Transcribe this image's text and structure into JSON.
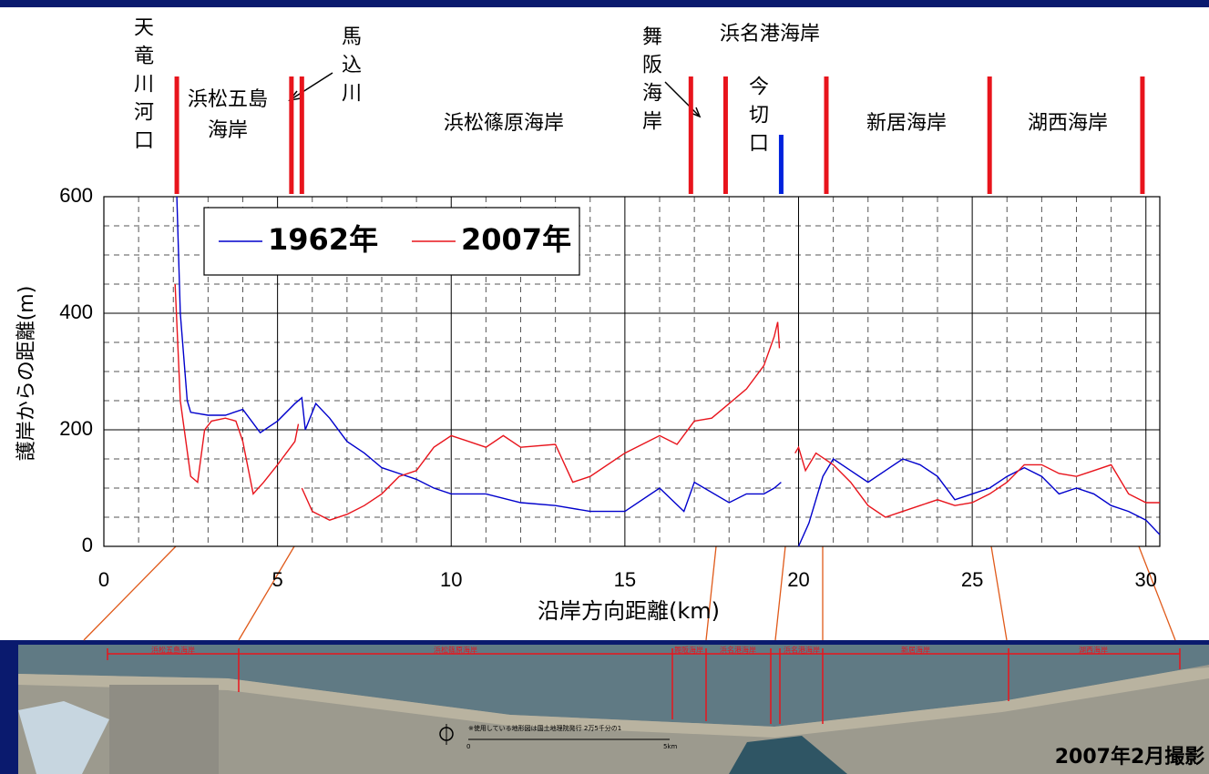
{
  "chart_data": {
    "type": "line",
    "ylabel": "護岸からの距離(m)",
    "xlabel": "沿岸方向距離(km)",
    "xlim": [
      0,
      30.4
    ],
    "ylim": [
      0,
      600
    ],
    "xticks": [
      0,
      5,
      10,
      15,
      20,
      25,
      30
    ],
    "yticks": [
      0,
      200,
      400,
      600
    ],
    "xminor": [
      1,
      2,
      3,
      4,
      6,
      7,
      8,
      9,
      11,
      12,
      13,
      14,
      16,
      17,
      18,
      19,
      21,
      22,
      23,
      24,
      26,
      27,
      28,
      29
    ],
    "yminor": [
      50,
      100,
      150,
      250,
      300,
      350,
      450,
      500,
      550
    ],
    "grid": true,
    "series": [
      {
        "name": "1962年",
        "color": "#0000cc",
        "x": [
          2.1,
          2.2,
          2.4,
          2.5,
          3,
          3.5,
          4,
          4.5,
          5,
          5.5,
          5.7,
          5.8,
          6.1,
          6.5,
          7,
          7.5,
          8,
          8.5,
          9,
          9.5,
          10,
          11,
          12,
          13,
          14,
          15,
          16,
          16.7,
          17,
          18,
          18.5,
          19,
          19.3,
          19.5,
          19.7,
          20,
          20.3,
          20.7,
          21,
          21.5,
          22,
          22.5,
          23,
          23.5,
          24,
          24.5,
          25,
          25.5,
          26,
          26.5,
          27,
          27.5,
          28,
          28.5,
          29,
          29.5,
          30,
          30.4
        ],
        "values": [
          600,
          400,
          250,
          230,
          225,
          225,
          235,
          195,
          215,
          245,
          255,
          200,
          245,
          220,
          180,
          160,
          135,
          125,
          115,
          100,
          90,
          90,
          75,
          70,
          60,
          60,
          100,
          60,
          110,
          75,
          90,
          90,
          100,
          110,
          null,
          0,
          40,
          120,
          150,
          130,
          110,
          130,
          150,
          140,
          120,
          80,
          90,
          100,
          120,
          135,
          120,
          90,
          100,
          90,
          70,
          60,
          45,
          20
        ]
      },
      {
        "name": "2007年",
        "color": "#e8141c",
        "x": [
          2.05,
          2.2,
          2.5,
          2.7,
          2.9,
          3.1,
          3.5,
          3.8,
          4,
          4.3,
          4.6,
          5,
          5.5,
          5.6,
          5.65,
          5.7,
          6,
          6.5,
          7,
          7.5,
          8,
          8.5,
          9,
          9.5,
          10,
          11,
          11.5,
          12,
          13,
          13.5,
          14,
          15,
          16,
          16.5,
          17,
          17.5,
          18,
          18.5,
          19,
          19.3,
          19.4,
          19.45,
          19.7,
          19.9,
          20,
          20.2,
          20.5,
          21,
          21.5,
          22,
          22.5,
          23,
          23.5,
          24,
          24.5,
          25,
          25.5,
          26,
          26.5,
          27,
          27.5,
          28,
          28.5,
          29,
          29.5,
          30,
          30.4
        ],
        "values": [
          450,
          250,
          120,
          110,
          200,
          215,
          220,
          215,
          180,
          90,
          110,
          140,
          180,
          210,
          null,
          100,
          60,
          45,
          55,
          70,
          90,
          120,
          130,
          170,
          190,
          170,
          190,
          170,
          175,
          110,
          120,
          160,
          190,
          175,
          215,
          220,
          245,
          270,
          310,
          360,
          385,
          340,
          null,
          160,
          170,
          130,
          160,
          140,
          110,
          70,
          50,
          60,
          70,
          80,
          70,
          75,
          90,
          110,
          140,
          140,
          125,
          120,
          130,
          140,
          90,
          75,
          75
        ]
      }
    ],
    "markers": [
      {
        "x": 2.1,
        "color": "#e8141c"
      },
      {
        "x": 5.4,
        "color": "#e8141c"
      },
      {
        "x": 5.7,
        "color": "#e8141c"
      },
      {
        "x": 16.9,
        "color": "#e8141c"
      },
      {
        "x": 17.9,
        "color": "#e8141c"
      },
      {
        "x": 19.5,
        "color": "#0022dd"
      },
      {
        "x": 20.8,
        "color": "#e8141c"
      },
      {
        "x": 25.5,
        "color": "#e8141c"
      },
      {
        "x": 29.9,
        "color": "#e8141c"
      }
    ],
    "sections": [
      {
        "lines": [
          "天竜川河口"
        ],
        "vertical": true
      },
      {
        "lines": [
          "浜松五島",
          "海岸"
        ],
        "vertical": false
      },
      {
        "lines": [
          "馬込川"
        ],
        "vertical": true
      },
      {
        "lines": [
          "浜松篠原海岸"
        ],
        "vertical": false
      },
      {
        "lines": [
          "舞阪海岸"
        ],
        "vertical": true
      },
      {
        "lines": [
          "浜名港海岸"
        ],
        "vertical": false
      },
      {
        "lines": [
          "今切口"
        ],
        "vertical": true
      },
      {
        "lines": [
          "新居海岸"
        ],
        "vertical": false
      },
      {
        "lines": [
          "湖西海岸"
        ],
        "vertical": false
      }
    ],
    "photo": {
      "caption": "2007年2月撮影",
      "note": "※使用している地形図は国土地理院発行 2万5千分の1",
      "labels": [
        "浜松五島海岸",
        "浜松篠原海岸",
        "舞阪海岸",
        "浜名港海岸",
        "浜名港海岸",
        "新居海岸",
        "湖西海岸"
      ],
      "scale_start": "0",
      "scale_end": "5km"
    }
  }
}
